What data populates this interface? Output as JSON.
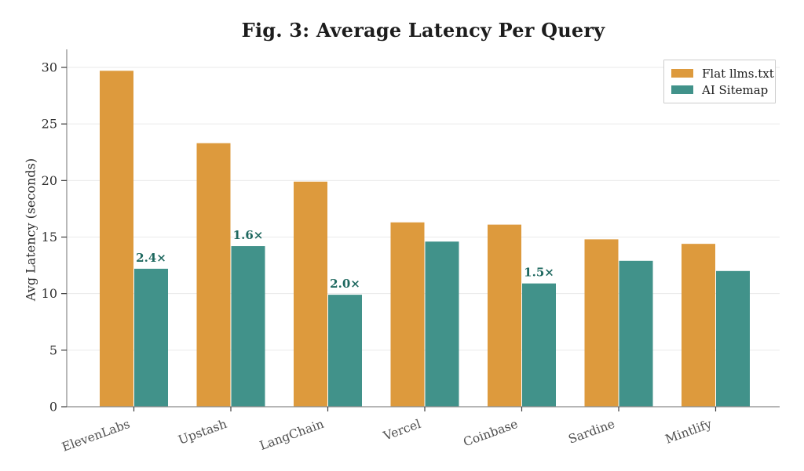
{
  "chart_data": {
    "type": "bar",
    "title": "Fig. 3: Average Latency Per Query",
    "xlabel": "",
    "ylabel": "Avg Latency (seconds)",
    "ylim": [
      0,
      31.5
    ],
    "yticks": [
      0,
      5,
      10,
      15,
      20,
      25,
      30
    ],
    "grid": true,
    "legend_position": "upper right",
    "categories": [
      "ElevenLabs",
      "Upstash",
      "LangChain",
      "Vercel",
      "Coinbase",
      "Sardine",
      "Mintlify"
    ],
    "series": [
      {
        "name": "Flat llms.txt",
        "color": "#DD9A3D",
        "values": [
          29.7,
          23.3,
          19.9,
          16.3,
          16.1,
          14.8,
          14.4
        ]
      },
      {
        "name": "AI Sitemap",
        "color": "#41928A",
        "values": [
          12.2,
          14.2,
          9.9,
          14.6,
          10.9,
          12.9,
          12.0
        ]
      }
    ],
    "annotations": [
      {
        "category_index": 0,
        "series_index": 1,
        "text": "2.4×"
      },
      {
        "category_index": 1,
        "series_index": 1,
        "text": "1.6×"
      },
      {
        "category_index": 2,
        "series_index": 1,
        "text": "2.0×"
      },
      {
        "category_index": 4,
        "series_index": 1,
        "text": "1.5×"
      }
    ],
    "annotation_color": "#1E685F"
  }
}
